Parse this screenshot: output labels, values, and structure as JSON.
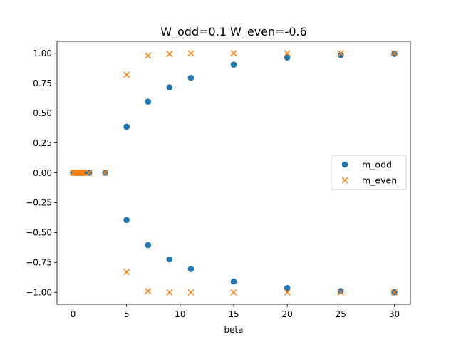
{
  "chart_data": {
    "type": "scatter",
    "title": "W_odd=0.1 W_even=-0.6",
    "xlabel": "beta",
    "ylabel": "",
    "xlim": [
      -1.5,
      31.5
    ],
    "ylim": [
      -1.1,
      1.1
    ],
    "x_ticks": [
      0,
      5,
      10,
      15,
      20,
      25,
      30
    ],
    "y_ticks": [
      -1.0,
      -0.75,
      -0.5,
      -0.25,
      0.0,
      0.25,
      0.5,
      0.75,
      1.0
    ],
    "x_tick_labels": [
      "0",
      "5",
      "10",
      "15",
      "20",
      "25",
      "30"
    ],
    "y_tick_labels": [
      "−1.00",
      "−0.75",
      "−0.50",
      "−0.25",
      "0.00",
      "0.25",
      "0.50",
      "0.75",
      "1.00"
    ],
    "grid": false,
    "legend": "center-right",
    "series": [
      {
        "name": "m_odd",
        "marker": "circle",
        "color": "#1f77b4",
        "points": [
          [
            0.0,
            0.0
          ],
          [
            0.1,
            0.0
          ],
          [
            0.2,
            0.0
          ],
          [
            0.3,
            0.0
          ],
          [
            0.4,
            0.0
          ],
          [
            0.5,
            0.0
          ],
          [
            0.6,
            0.0
          ],
          [
            0.7,
            0.0
          ],
          [
            0.8,
            0.0
          ],
          [
            0.9,
            0.0
          ],
          [
            1.0,
            0.0
          ],
          [
            1.5,
            0.0
          ],
          [
            3.0,
            0.0
          ],
          [
            5,
            0.385
          ],
          [
            5,
            -0.395
          ],
          [
            7,
            0.595
          ],
          [
            7,
            -0.605
          ],
          [
            9,
            0.715
          ],
          [
            9,
            -0.725
          ],
          [
            11,
            0.795
          ],
          [
            11,
            -0.805
          ],
          [
            15,
            0.905
          ],
          [
            15,
            -0.91
          ],
          [
            20,
            0.965
          ],
          [
            20,
            -0.965
          ],
          [
            25,
            0.985
          ],
          [
            25,
            -0.99
          ],
          [
            30,
            0.995
          ],
          [
            30,
            -1.0
          ]
        ]
      },
      {
        "name": "m_even",
        "marker": "x",
        "color": "#ff7f0e",
        "points": [
          [
            0.0,
            0.0
          ],
          [
            0.1,
            0.0
          ],
          [
            0.2,
            0.0
          ],
          [
            0.3,
            0.0
          ],
          [
            0.4,
            0.0
          ],
          [
            0.5,
            0.0
          ],
          [
            0.6,
            0.0
          ],
          [
            0.7,
            0.0
          ],
          [
            0.8,
            0.0
          ],
          [
            0.9,
            0.0
          ],
          [
            1.0,
            0.0
          ],
          [
            1.5,
            0.0
          ],
          [
            3.0,
            0.0
          ],
          [
            5,
            0.82
          ],
          [
            5,
            -0.83
          ],
          [
            7,
            0.98
          ],
          [
            7,
            -0.99
          ],
          [
            9,
            0.995
          ],
          [
            9,
            -1.0
          ],
          [
            11,
            1.0
          ],
          [
            11,
            -1.0
          ],
          [
            15,
            1.0
          ],
          [
            15,
            -1.0
          ],
          [
            20,
            1.0
          ],
          [
            20,
            -1.0
          ],
          [
            25,
            1.0
          ],
          [
            25,
            -1.0
          ],
          [
            30,
            1.0
          ],
          [
            30,
            -1.0
          ]
        ]
      }
    ]
  }
}
